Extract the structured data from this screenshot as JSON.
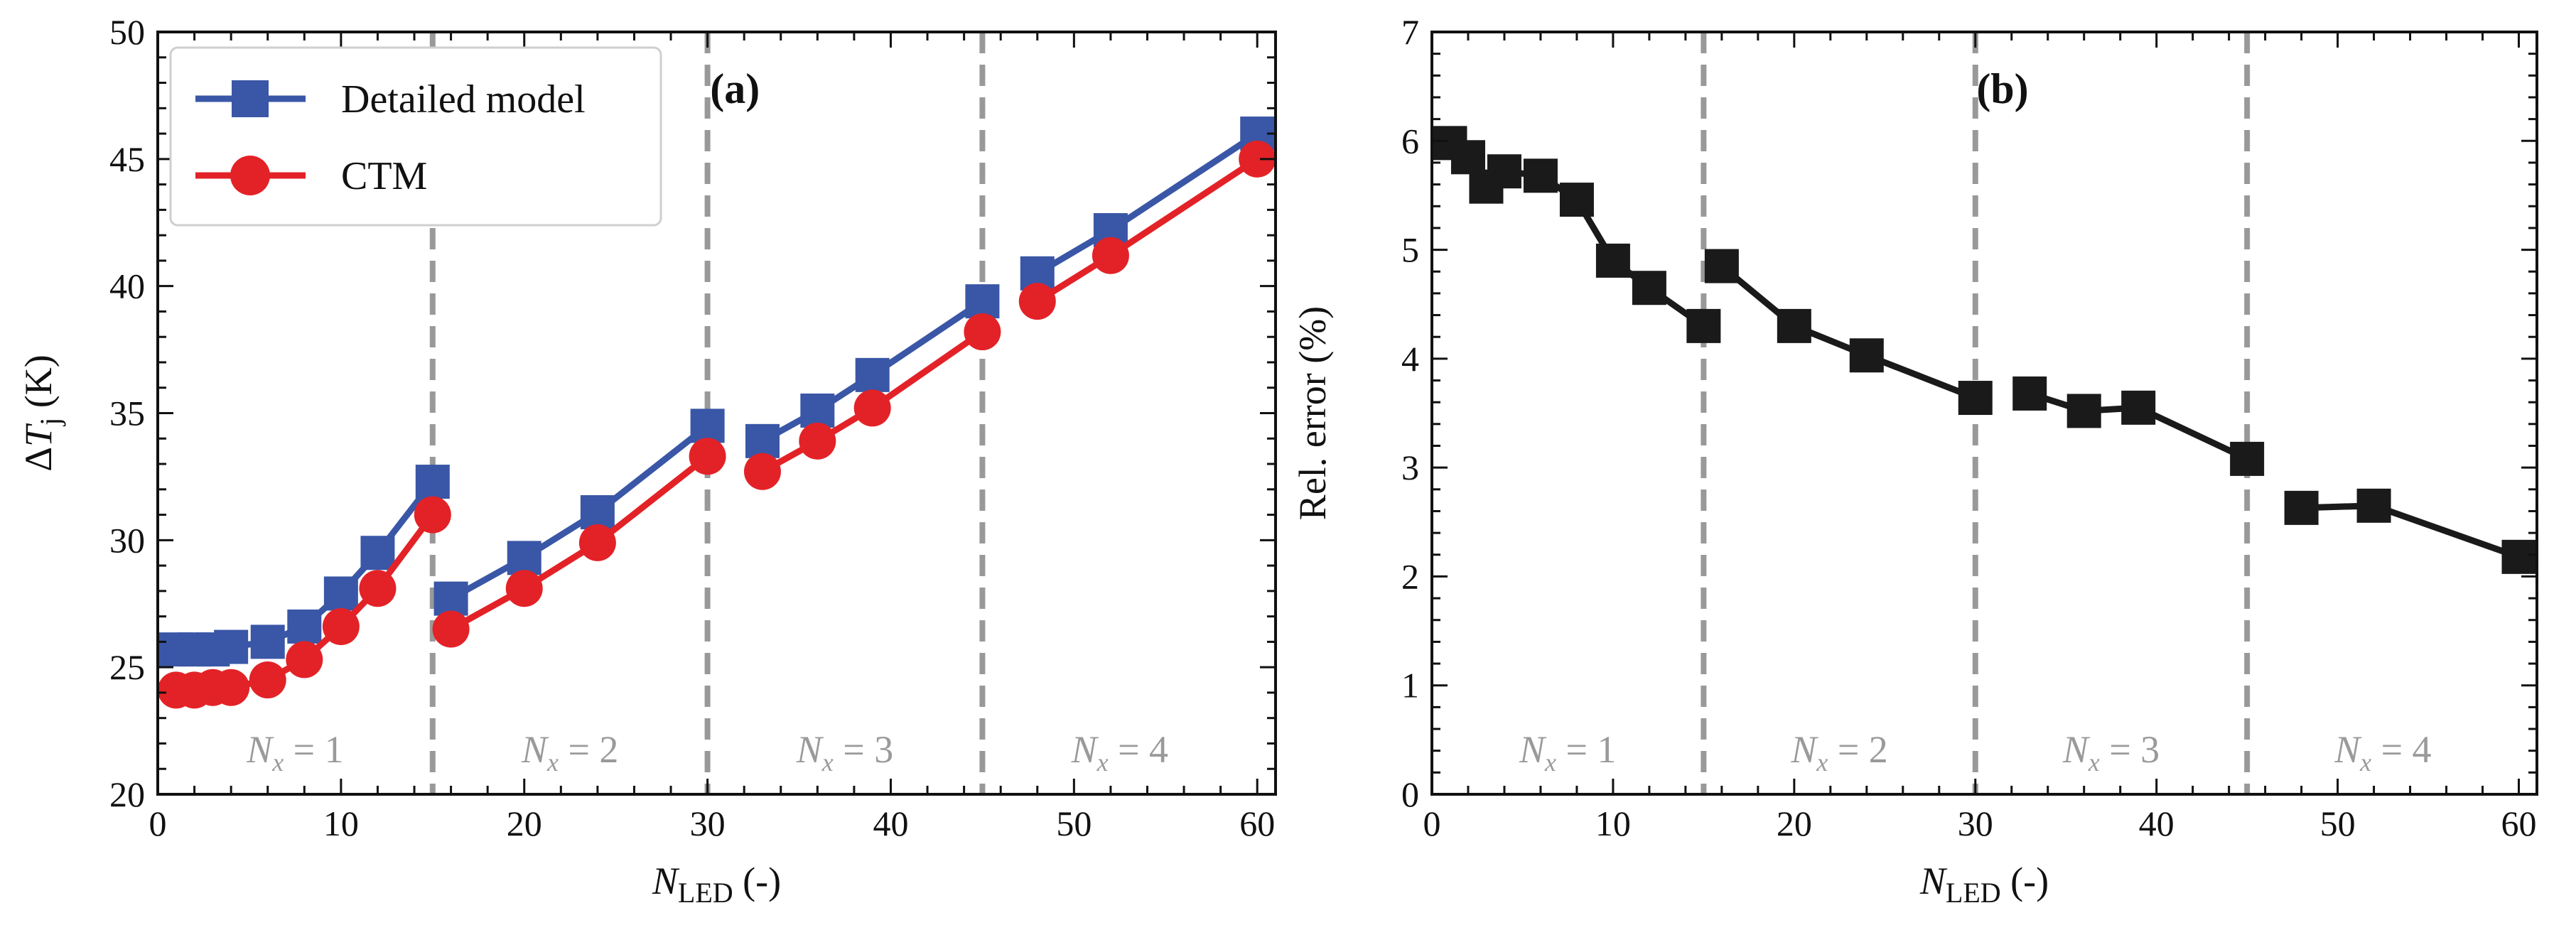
{
  "chart_data": [
    {
      "type": "line",
      "panel_label": "(a)",
      "xlabel": {
        "main": "N",
        "sub": "LED",
        "suffix": " (-)"
      },
      "ylabel": {
        "delta": "Δ",
        "main": "T",
        "sub": "j",
        "suffix": " (K)"
      },
      "xlim": [
        0,
        61
      ],
      "ylim": [
        20,
        50
      ],
      "xticks": [
        0,
        10,
        20,
        30,
        40,
        50,
        60
      ],
      "yticks": [
        20,
        25,
        30,
        35,
        40,
        45,
        50
      ],
      "vlines": [
        15,
        30,
        45
      ],
      "regions": [
        {
          "x": 7.5,
          "label": "N",
          "sub": "x",
          "eq": " = 1"
        },
        {
          "x": 22.5,
          "label": "N",
          "sub": "x",
          "eq": " = 2"
        },
        {
          "x": 37.5,
          "label": "N",
          "sub": "x",
          "eq": " = 3"
        },
        {
          "x": 52.5,
          "label": "N",
          "sub": "x",
          "eq": " = 4"
        }
      ],
      "legend": {
        "position": "top-left"
      },
      "series": [
        {
          "name": "Detailed model",
          "color": "#3a56a6",
          "marker": "square",
          "segments": [
            [
              [
                1,
                25.7
              ],
              [
                2,
                25.7
              ],
              [
                3,
                25.7
              ],
              [
                4,
                25.8
              ],
              [
                6,
                26.0
              ],
              [
                8,
                26.6
              ],
              [
                10,
                27.9
              ],
              [
                12,
                29.5
              ],
              [
                15,
                32.3
              ]
            ],
            [
              [
                16,
                27.7
              ],
              [
                20,
                29.3
              ],
              [
                24,
                31.1
              ],
              [
                30,
                34.5
              ]
            ],
            [
              [
                33,
                33.9
              ],
              [
                36,
                35.1
              ],
              [
                39,
                36.5
              ],
              [
                45,
                39.4
              ]
            ],
            [
              [
                48,
                40.5
              ],
              [
                52,
                42.2
              ],
              [
                60,
                46.0
              ]
            ]
          ]
        },
        {
          "name": "CTM",
          "color": "#e32227",
          "marker": "circle",
          "segments": [
            [
              [
                1,
                24.1
              ],
              [
                2,
                24.1
              ],
              [
                3,
                24.2
              ],
              [
                4,
                24.2
              ],
              [
                6,
                24.5
              ],
              [
                8,
                25.3
              ],
              [
                10,
                26.6
              ],
              [
                12,
                28.1
              ],
              [
                15,
                31.0
              ]
            ],
            [
              [
                16,
                26.5
              ],
              [
                20,
                28.1
              ],
              [
                24,
                29.9
              ],
              [
                30,
                33.3
              ]
            ],
            [
              [
                33,
                32.7
              ],
              [
                36,
                33.9
              ],
              [
                39,
                35.2
              ],
              [
                45,
                38.2
              ]
            ],
            [
              [
                48,
                39.4
              ],
              [
                52,
                41.2
              ],
              [
                60,
                45.0
              ]
            ]
          ]
        }
      ]
    },
    {
      "type": "line",
      "panel_label": "(b)",
      "xlabel": {
        "main": "N",
        "sub": "LED",
        "suffix": " (-)"
      },
      "ylabel": {
        "text": "Rel. error (%)"
      },
      "xlim": [
        0,
        61
      ],
      "ylim": [
        0,
        7
      ],
      "xticks": [
        0,
        10,
        20,
        30,
        40,
        50,
        60
      ],
      "yticks": [
        0,
        1,
        2,
        3,
        4,
        5,
        6,
        7
      ],
      "vlines": [
        15,
        30,
        45
      ],
      "regions": [
        {
          "x": 7.5,
          "label": "N",
          "sub": "x",
          "eq": " = 1"
        },
        {
          "x": 22.5,
          "label": "N",
          "sub": "x",
          "eq": " = 2"
        },
        {
          "x": 37.5,
          "label": "N",
          "sub": "x",
          "eq": " = 3"
        },
        {
          "x": 52.5,
          "label": "N",
          "sub": "x",
          "eq": " = 4"
        }
      ],
      "series": [
        {
          "name": "Rel. error",
          "color": "#1a1a1a",
          "marker": "square",
          "segments": [
            [
              [
                1,
                5.98
              ],
              [
                2,
                5.85
              ],
              [
                3,
                5.58
              ],
              [
                4,
                5.72
              ],
              [
                6,
                5.68
              ],
              [
                8,
                5.46
              ],
              [
                10,
                4.9
              ],
              [
                12,
                4.65
              ],
              [
                15,
                4.3
              ]
            ],
            [
              [
                16,
                4.85
              ],
              [
                20,
                4.3
              ],
              [
                24,
                4.03
              ],
              [
                30,
                3.64
              ]
            ],
            [
              [
                33,
                3.68
              ],
              [
                36,
                3.52
              ],
              [
                39,
                3.55
              ],
              [
                45,
                3.08
              ]
            ],
            [
              [
                48,
                2.63
              ],
              [
                52,
                2.65
              ],
              [
                60,
                2.18
              ]
            ]
          ]
        }
      ]
    }
  ]
}
